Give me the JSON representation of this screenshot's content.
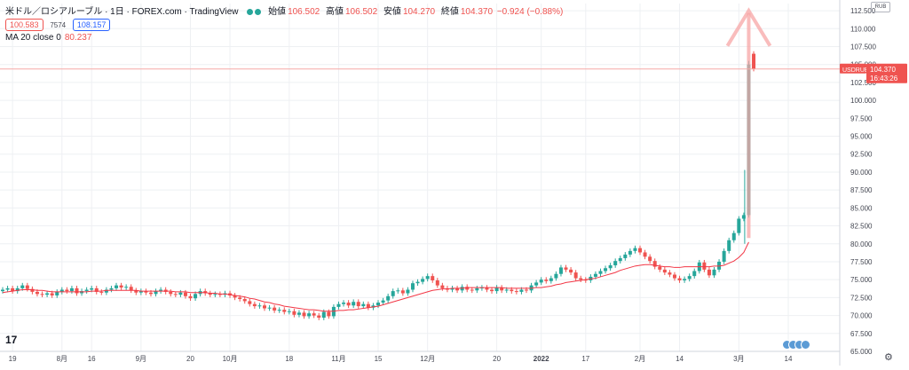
{
  "header": {
    "symbol_title": "米ドル／ロシアルーブル · 1日 · FOREX.com · TradingView",
    "open_label": "始値",
    "open_value": "106.502",
    "high_label": "高値",
    "high_value": "106.502",
    "low_label": "安値",
    "low_value": "104.270",
    "close_label": "終値",
    "close_value": "104.370",
    "change_value": "−0.924 (−0.88%)",
    "bid_box": "100.583",
    "spread": "7574",
    "ask_box": "108.157",
    "ma_label": "MA 20 close 0",
    "ma_value": "80.237",
    "currency_box": "RUB",
    "logo_glyph": "17"
  },
  "colors": {
    "up": "#26a69a",
    "down": "#ef5350",
    "ma": "#f23645",
    "arrow": "#f7a6a6",
    "grid": "#eef0f3",
    "axis_text": "#434651"
  },
  "chart_data": {
    "type": "candlestick",
    "title": "米ドル／ロシアルーブル",
    "xlabel": "",
    "ylabel": "",
    "ylim": [
      65,
      113.5
    ],
    "y_ticks": [
      "112.500",
      "110.000",
      "107.500",
      "105.000",
      "102.500",
      "100.000",
      "97.500",
      "95.000",
      "92.500",
      "90.000",
      "87.500",
      "85.000",
      "82.500",
      "80.000",
      "77.500",
      "75.000",
      "72.500",
      "70.000",
      "67.500",
      "65.000"
    ],
    "x_ticks": [
      {
        "label": "19",
        "i": 2
      },
      {
        "label": "8月",
        "i": 12
      },
      {
        "label": "16",
        "i": 18
      },
      {
        "label": "9月",
        "i": 28
      },
      {
        "label": "20",
        "i": 38
      },
      {
        "label": "10月",
        "i": 46
      },
      {
        "label": "18",
        "i": 58
      },
      {
        "label": "11月",
        "i": 68
      },
      {
        "label": "15",
        "i": 76
      },
      {
        "label": "12月",
        "i": 86
      },
      {
        "label": "20",
        "i": 100
      },
      {
        "label": "2022",
        "i": 109
      },
      {
        "label": "17",
        "i": 118
      },
      {
        "label": "2月",
        "i": 129
      },
      {
        "label": "14",
        "i": 137
      },
      {
        "label": "3月",
        "i": 149
      },
      {
        "label": "14",
        "i": 159
      }
    ],
    "last_price": {
      "symbol": "USDRUB",
      "price": "104.370",
      "countdown": "16:43:26",
      "value": 104.37
    },
    "series": [
      {
        "name": "USDRUB",
        "closes": [
          73.6,
          73.8,
          73.4,
          73.8,
          74.2,
          73.7,
          73.3,
          73.0,
          72.9,
          73.1,
          72.8,
          73.3,
          73.6,
          73.4,
          73.8,
          73.1,
          73.4,
          73.6,
          73.8,
          73.3,
          73.2,
          73.6,
          73.8,
          74.2,
          73.9,
          74.0,
          73.5,
          73.2,
          73.4,
          73.2,
          73.0,
          73.4,
          73.6,
          73.3,
          73.0,
          72.9,
          73.2,
          72.7,
          72.4,
          73.0,
          73.4,
          73.1,
          72.9,
          73.0,
          72.9,
          73.1,
          72.8,
          72.5,
          72.3,
          72.0,
          71.6,
          71.3,
          71.4,
          71.0,
          71.1,
          70.7,
          70.8,
          70.5,
          70.6,
          70.1,
          70.4,
          69.9,
          70.3,
          70.0,
          69.7,
          70.5,
          69.9,
          71.2,
          71.6,
          71.8,
          71.4,
          71.9,
          71.3,
          71.6,
          71.1,
          71.4,
          71.8,
          72.1,
          72.7,
          73.4,
          73.5,
          73.1,
          73.6,
          74.5,
          74.7,
          75.1,
          75.5,
          74.9,
          74.2,
          73.8,
          73.6,
          73.8,
          73.5,
          74.0,
          73.6,
          73.5,
          73.8,
          73.9,
          73.6,
          73.4,
          73.9,
          73.5,
          73.6,
          73.4,
          73.3,
          73.6,
          73.5,
          74.2,
          74.6,
          75.0,
          74.8,
          75.2,
          75.8,
          76.7,
          76.4,
          76.0,
          75.2,
          75.0,
          74.9,
          75.4,
          75.8,
          76.2,
          76.6,
          77.0,
          77.6,
          78.0,
          78.5,
          79.0,
          79.4,
          78.8,
          78.2,
          77.6,
          76.8,
          76.4,
          76.0,
          75.7,
          75.2,
          74.9,
          75.1,
          75.5,
          76.2,
          77.4,
          76.4,
          75.6,
          76.4,
          77.5,
          79.0,
          80.5,
          81.5,
          83.5,
          84.0,
          105.0,
          104.4
        ]
      },
      {
        "name": "MA 20 close 0",
        "values": [
          73.2,
          73.3,
          73.4,
          73.5,
          73.6,
          73.6,
          73.6,
          73.5,
          73.5,
          73.4,
          73.3,
          73.3,
          73.3,
          73.3,
          73.3,
          73.3,
          73.3,
          73.3,
          73.4,
          73.4,
          73.4,
          73.5,
          73.5,
          73.5,
          73.5,
          73.5,
          73.5,
          73.5,
          73.4,
          73.4,
          73.4,
          73.4,
          73.4,
          73.4,
          73.4,
          73.3,
          73.3,
          73.3,
          73.2,
          73.2,
          73.2,
          73.2,
          73.1,
          73.1,
          73.0,
          73.0,
          72.9,
          72.8,
          72.7,
          72.6,
          72.4,
          72.3,
          72.1,
          71.9,
          71.8,
          71.6,
          71.5,
          71.3,
          71.2,
          71.1,
          71.0,
          70.9,
          70.8,
          70.8,
          70.7,
          70.6,
          70.6,
          70.6,
          70.7,
          70.7,
          70.8,
          70.8,
          70.9,
          71.0,
          71.1,
          71.2,
          71.3,
          71.5,
          71.7,
          71.9,
          72.1,
          72.3,
          72.5,
          72.7,
          72.9,
          73.1,
          73.3,
          73.5,
          73.6,
          73.7,
          73.7,
          73.8,
          73.8,
          73.8,
          73.9,
          73.9,
          73.9,
          73.9,
          73.9,
          73.9,
          73.9,
          73.9,
          73.8,
          73.8,
          73.8,
          73.8,
          73.8,
          73.8,
          73.9,
          73.9,
          74.0,
          74.1,
          74.3,
          74.4,
          74.6,
          74.7,
          74.8,
          74.9,
          75.0,
          75.1,
          75.2,
          75.4,
          75.6,
          75.8,
          76.0,
          76.3,
          76.5,
          76.7,
          76.9,
          77.0,
          77.1,
          77.1,
          77.0,
          76.9,
          76.8,
          76.8,
          76.7,
          76.7,
          76.8,
          76.8,
          76.8,
          76.8,
          76.8,
          76.8,
          76.9,
          76.9,
          77.0,
          77.3,
          77.6,
          78.1,
          78.8,
          80.237
        ]
      }
    ],
    "annotation": "up-arrow"
  }
}
